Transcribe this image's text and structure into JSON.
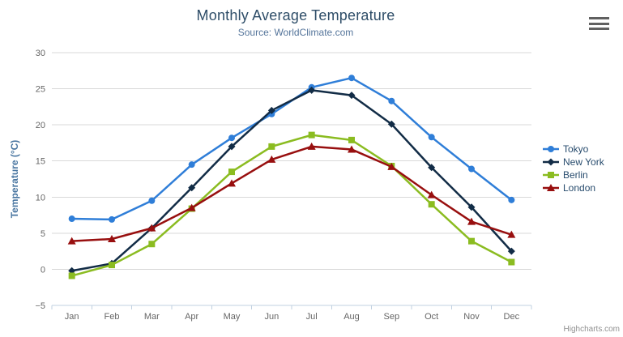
{
  "chart": {
    "title": "Monthly Average Temperature",
    "subtitle": "Source: WorldClimate.com",
    "credits": "Highcharts.com",
    "export_menu_icon": "hamburger-icon"
  },
  "colors": {
    "title_text": "#2e4d68",
    "subtitle_text": "#55759b",
    "axis_label": "#666666",
    "y_axis_title": "#4875a0",
    "gridline": "#d8d8d8",
    "axis_line": "#c0d0e0",
    "legend_text": "#274b6d",
    "credits_text": "#909090"
  },
  "chart_data": {
    "type": "line",
    "title": "Monthly Average Temperature",
    "subtitle": "Source: WorldClimate.com",
    "xlabel": "",
    "ylabel": "Temperature (°C)",
    "ylim": [
      -5,
      30
    ],
    "y_tick_interval": 5,
    "y_ticks": [
      -5,
      0,
      5,
      10,
      15,
      20,
      25,
      30
    ],
    "grid": "horizontal",
    "legend_position": "right",
    "categories": [
      "Jan",
      "Feb",
      "Mar",
      "Apr",
      "May",
      "Jun",
      "Jul",
      "Aug",
      "Sep",
      "Oct",
      "Nov",
      "Dec"
    ],
    "series": [
      {
        "name": "Tokyo",
        "color": "#2f7ed8",
        "marker": "circle",
        "values": [
          7.0,
          6.9,
          9.5,
          14.5,
          18.2,
          21.5,
          25.2,
          26.5,
          23.3,
          18.3,
          13.9,
          9.6
        ]
      },
      {
        "name": "New York",
        "color": "#122c46",
        "marker": "diamond",
        "values": [
          -0.2,
          0.8,
          5.7,
          11.3,
          17.0,
          22.0,
          24.8,
          24.1,
          20.1,
          14.1,
          8.6,
          2.5
        ]
      },
      {
        "name": "Berlin",
        "color": "#8bbc21",
        "marker": "square",
        "values": [
          -0.9,
          0.6,
          3.5,
          8.4,
          13.5,
          17.0,
          18.6,
          17.9,
          14.3,
          9.0,
          3.9,
          1.0
        ]
      },
      {
        "name": "London",
        "color": "#980f0f",
        "marker": "triangle",
        "values": [
          3.9,
          4.2,
          5.7,
          8.5,
          11.9,
          15.2,
          17.0,
          16.6,
          14.2,
          10.3,
          6.6,
          4.8
        ]
      }
    ]
  }
}
